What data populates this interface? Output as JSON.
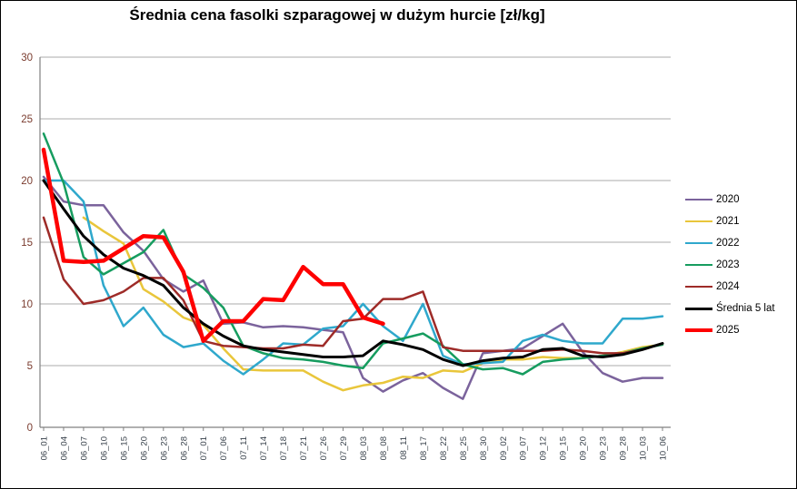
{
  "chart": {
    "y_axis_color": "#7A3B2E",
    "x_axis_color": "#37404A",
    "grid_color": "#ABABAB",
    "axis_line_color": "#808080",
    "background": "#FFFFFF"
  },
  "chart_data": {
    "type": "line",
    "title": "Średnia cena fasolki szparagowej w dużym hurcie [zł/kg]",
    "xlabel": "",
    "ylabel": "",
    "ylim": [
      0,
      30
    ],
    "ytick_interval": 5,
    "yticks": [
      0,
      5,
      10,
      15,
      20,
      25,
      30
    ],
    "grid": true,
    "legend_position": "right",
    "categories": [
      "06_01",
      "06_04",
      "06_07",
      "06_10",
      "06_15",
      "06_20",
      "06_23",
      "06_28",
      "07_01",
      "07_06",
      "07_11",
      "07_14",
      "07_18",
      "07_21",
      "07_26",
      "07_29",
      "08_03",
      "08_08",
      "08_11",
      "08_17",
      "08_22",
      "08_25",
      "08_30",
      "09_02",
      "09_07",
      "09_12",
      "09_15",
      "09_20",
      "09_23",
      "09_28",
      "10_03",
      "10_06"
    ],
    "series": [
      {
        "name": "2020",
        "color": "#7B639C",
        "thickness": 2.5,
        "values": [
          20.3,
          18.3,
          18.0,
          18.0,
          15.8,
          14.3,
          12.0,
          11.0,
          11.9,
          8.4,
          8.5,
          8.1,
          8.2,
          8.1,
          7.9,
          7.7,
          4.0,
          2.9,
          3.8,
          4.4,
          3.2,
          2.3,
          6.0,
          6.2,
          6.4,
          7.4,
          8.4,
          6.1,
          4.4,
          3.7,
          4.0,
          4.0
        ]
      },
      {
        "name": "2021",
        "color": "#E9C63B",
        "thickness": 2.5,
        "values": [
          null,
          null,
          17.0,
          15.9,
          14.9,
          11.2,
          10.2,
          8.9,
          8.3,
          6.4,
          4.7,
          4.6,
          4.6,
          4.6,
          3.7,
          3.0,
          3.4,
          3.6,
          4.1,
          4.0,
          4.6,
          4.5,
          5.2,
          5.5,
          5.5,
          5.7,
          5.6,
          5.6,
          5.8,
          6.1,
          6.5,
          6.7
        ]
      },
      {
        "name": "2022",
        "color": "#2FA8CC",
        "thickness": 2.5,
        "values": [
          20.0,
          20.0,
          18.3,
          11.5,
          8.2,
          9.7,
          7.5,
          6.5,
          6.8,
          5.4,
          4.3,
          5.5,
          6.8,
          6.7,
          8.0,
          8.2,
          10.0,
          8.2,
          7.0,
          10.0,
          5.8,
          5.1,
          5.2,
          5.3,
          7.0,
          7.5,
          7.0,
          6.8,
          6.8,
          8.8,
          8.8,
          9.0
        ]
      },
      {
        "name": "2023",
        "color": "#169C5F",
        "thickness": 2.5,
        "values": [
          23.8,
          19.8,
          13.8,
          12.4,
          13.3,
          14.2,
          16.0,
          12.4,
          11.3,
          9.7,
          6.6,
          6.0,
          5.6,
          5.5,
          5.3,
          5.0,
          4.8,
          6.8,
          7.2,
          7.6,
          6.6,
          5.1,
          4.7,
          4.8,
          4.3,
          5.3,
          5.5,
          5.6,
          5.8,
          6.0,
          6.4,
          6.7
        ]
      },
      {
        "name": "2024",
        "color": "#9E2B28",
        "thickness": 2.5,
        "values": [
          17.0,
          12.0,
          10.0,
          10.3,
          11.0,
          12.1,
          12.1,
          10.3,
          7.0,
          6.6,
          6.5,
          6.4,
          6.4,
          6.7,
          6.6,
          8.6,
          8.8,
          10.4,
          10.4,
          11.0,
          6.5,
          6.2,
          6.2,
          6.2,
          6.2,
          6.2,
          6.3,
          6.2,
          6.0,
          6.0,
          6.3,
          6.8
        ]
      },
      {
        "name": "Średnia 5 lat",
        "color": "#000000",
        "thickness": 3,
        "values": [
          20.0,
          17.7,
          15.5,
          14.0,
          12.9,
          12.3,
          11.5,
          9.7,
          8.4,
          7.4,
          6.6,
          6.3,
          6.1,
          5.9,
          5.7,
          5.7,
          5.8,
          7.0,
          6.7,
          6.3,
          5.5,
          5.0,
          5.4,
          5.6,
          5.7,
          6.3,
          6.4,
          5.8,
          5.7,
          5.9,
          6.3,
          6.8
        ]
      },
      {
        "name": "2025",
        "color": "#FE0000",
        "thickness": 4.5,
        "values": [
          22.5,
          13.5,
          13.4,
          13.5,
          14.5,
          15.5,
          15.4,
          12.6,
          7.0,
          8.6,
          8.6,
          10.4,
          10.3,
          13.0,
          11.6,
          11.6,
          8.9,
          8.4,
          null,
          null,
          null,
          null,
          null,
          null,
          null,
          null,
          null,
          null,
          null,
          null,
          null,
          null
        ]
      }
    ]
  }
}
